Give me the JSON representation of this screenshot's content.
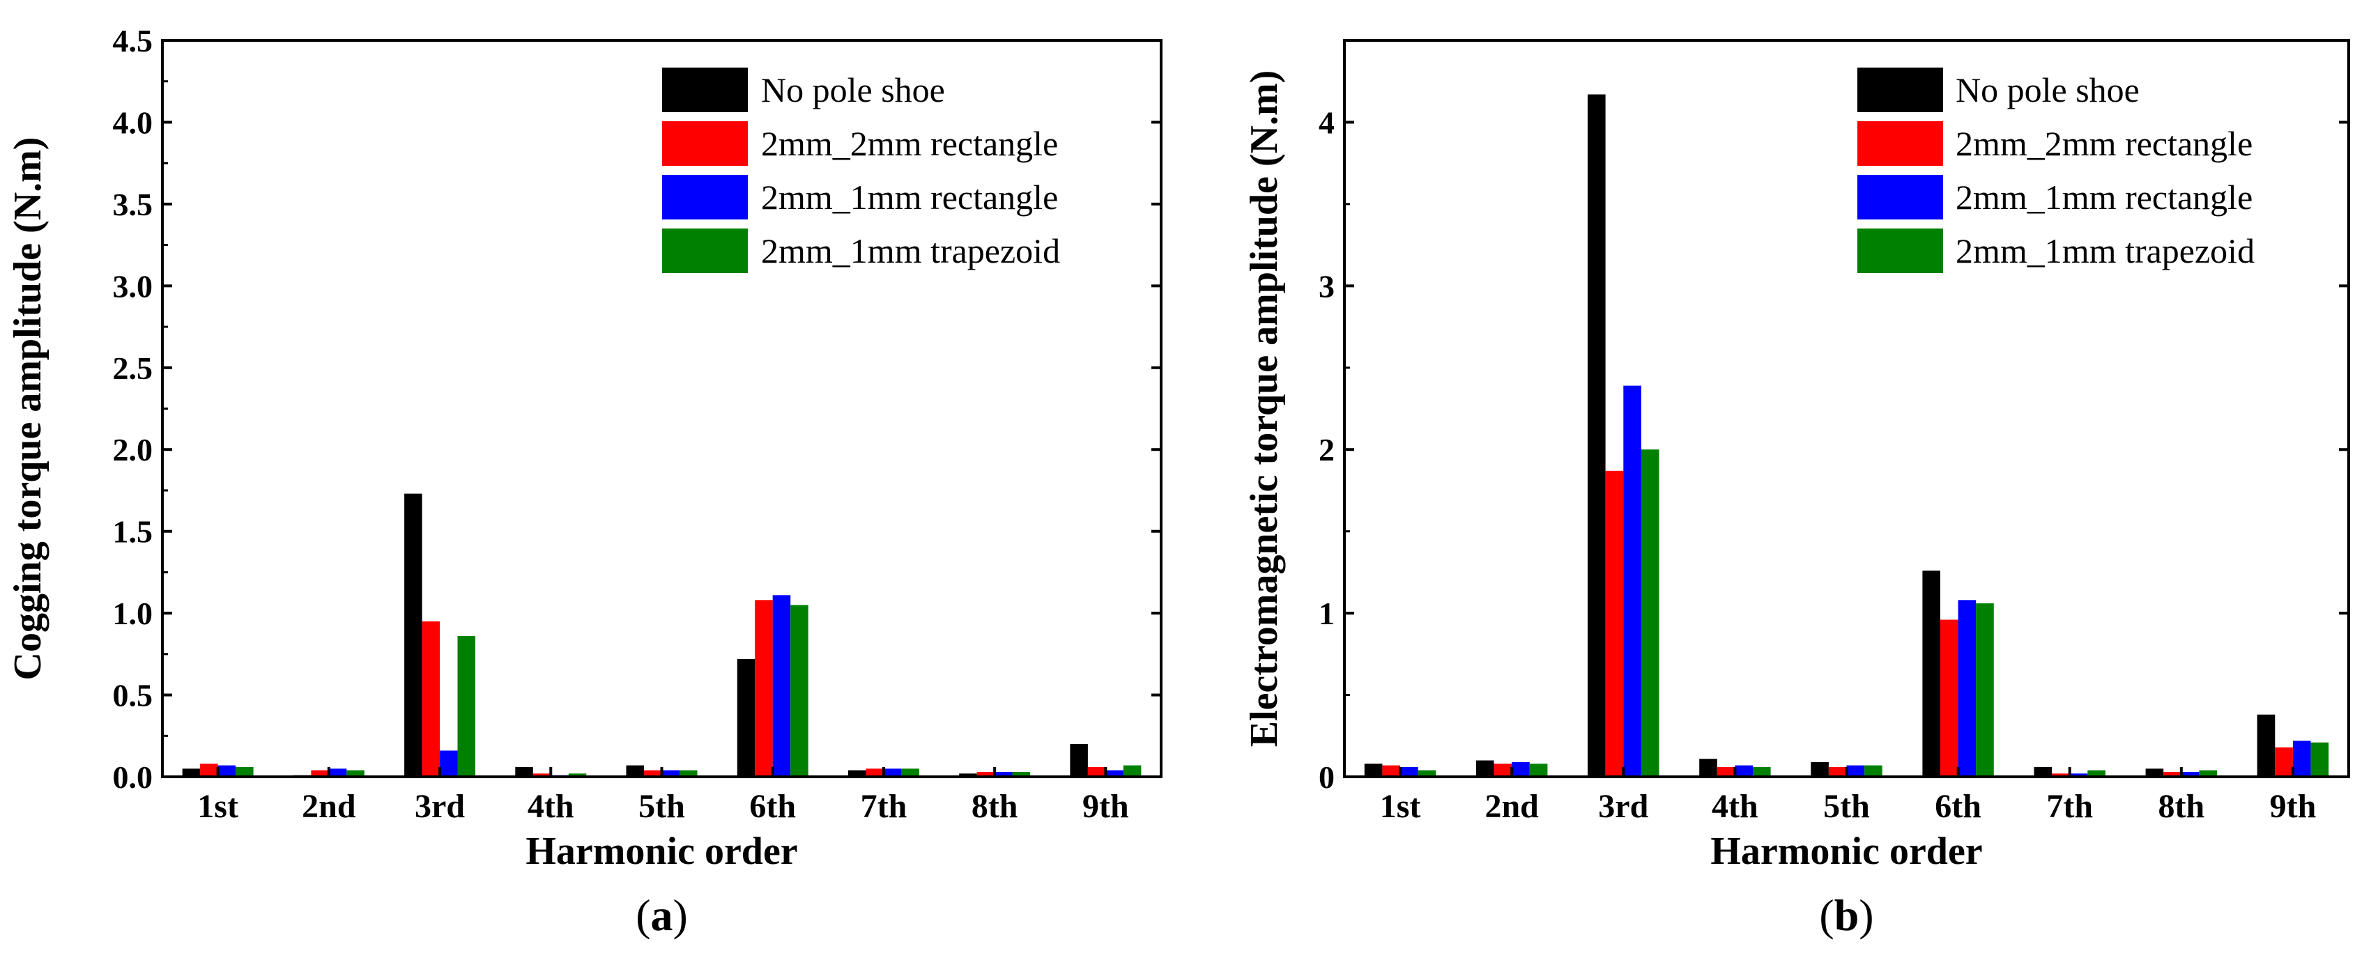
{
  "chart_data": [
    {
      "type": "bar",
      "panel_label": {
        "open": "(",
        "letter": "a",
        "close": ")"
      },
      "xlabel": "Harmonic order",
      "ylabel": "Cogging torque amplitude (N.m)",
      "ylim": [
        0,
        4.5
      ],
      "yticks": [
        "0.0",
        "0.5",
        "1.0",
        "1.5",
        "2.0",
        "2.5",
        "3.0",
        "3.5",
        "4.0",
        "4.5"
      ],
      "ytick_values": [
        0,
        0.5,
        1.0,
        1.5,
        2.0,
        2.5,
        3.0,
        3.5,
        4.0,
        4.5
      ],
      "categories": [
        "1st",
        "2nd",
        "3rd",
        "4th",
        "5th",
        "6th",
        "7th",
        "8th",
        "9th"
      ],
      "grid": false,
      "legend_position": "top-right",
      "series": [
        {
          "name": "No pole shoe",
          "color": "#000000",
          "values": [
            0.05,
            0.01,
            1.73,
            0.06,
            0.07,
            0.72,
            0.04,
            0.02,
            0.2
          ]
        },
        {
          "name": "2mm_2mm rectangle",
          "color": "#ff0000",
          "values": [
            0.08,
            0.04,
            0.95,
            0.02,
            0.04,
            1.08,
            0.05,
            0.03,
            0.06
          ]
        },
        {
          "name": "2mm_1mm rectangle",
          "color": "#0000ff",
          "values": [
            0.07,
            0.05,
            0.16,
            0.01,
            0.04,
            1.11,
            0.05,
            0.03,
            0.04
          ]
        },
        {
          "name": "2mm_1mm trapezoid",
          "color": "#008000",
          "values": [
            0.06,
            0.04,
            0.86,
            0.02,
            0.04,
            1.05,
            0.05,
            0.03,
            0.07
          ]
        }
      ]
    },
    {
      "type": "bar",
      "panel_label": {
        "open": "(",
        "letter": "b",
        "close": ")"
      },
      "xlabel": "Harmonic order",
      "ylabel": "Electromagnetic torque amplitude (N.m)",
      "ylim": [
        0,
        4.5
      ],
      "yticks": [
        "0",
        "1",
        "2",
        "3",
        "4"
      ],
      "ytick_values": [
        0,
        1,
        2,
        3,
        4
      ],
      "categories": [
        "1st",
        "2nd",
        "3rd",
        "4th",
        "5th",
        "6th",
        "7th",
        "8th",
        "9th"
      ],
      "grid": false,
      "legend_position": "top-right",
      "series": [
        {
          "name": "No pole shoe",
          "color": "#000000",
          "values": [
            0.08,
            0.1,
            4.17,
            0.11,
            0.09,
            1.26,
            0.06,
            0.05,
            0.38
          ]
        },
        {
          "name": "2mm_2mm rectangle",
          "color": "#ff0000",
          "values": [
            0.07,
            0.08,
            1.87,
            0.06,
            0.06,
            0.96,
            0.02,
            0.03,
            0.18
          ]
        },
        {
          "name": "2mm_1mm rectangle",
          "color": "#0000ff",
          "values": [
            0.06,
            0.09,
            2.39,
            0.07,
            0.07,
            1.08,
            0.02,
            0.03,
            0.22
          ]
        },
        {
          "name": "2mm_1mm trapezoid",
          "color": "#008000",
          "values": [
            0.04,
            0.08,
            2.0,
            0.06,
            0.07,
            1.06,
            0.04,
            0.04,
            0.21
          ]
        }
      ]
    }
  ]
}
